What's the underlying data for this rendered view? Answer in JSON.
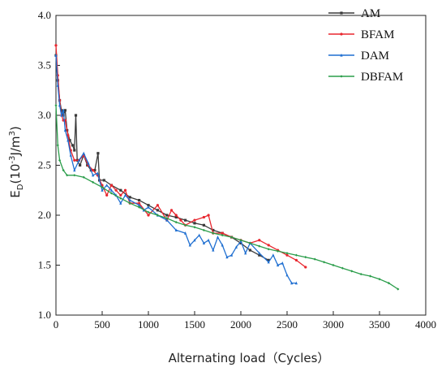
{
  "chart_data": {
    "type": "line",
    "title": "",
    "xlabel": "Alternating load（Cycles）",
    "ylabel": {
      "base": "E",
      "sub": "D",
      "rest1": "(10",
      "sup": "-3",
      "rest2": "J/m",
      "sup2": "3",
      "rest3": ")"
    },
    "xlim": [
      0,
      4000
    ],
    "ylim": [
      1.0,
      4.0
    ],
    "xticks": [
      "0",
      "500",
      "1000",
      "1500",
      "2000",
      "2500",
      "3000",
      "3500",
      "4000"
    ],
    "yticks": [
      "1.0",
      "1.5",
      "2.0",
      "2.5",
      "3.0",
      "3.5",
      "4.0"
    ],
    "grid": false,
    "legend_position": "top-right",
    "series": [
      {
        "name": "AM",
        "color": "#3a3a3a",
        "marker": "square",
        "points": [
          [
            0,
            3.6
          ],
          [
            20,
            3.35
          ],
          [
            40,
            3.15
          ],
          [
            60,
            3.05
          ],
          [
            80,
            3.0
          ],
          [
            100,
            3.05
          ],
          [
            120,
            2.85
          ],
          [
            150,
            2.75
          ],
          [
            180,
            2.7
          ],
          [
            200,
            2.65
          ],
          [
            215,
            3.0
          ],
          [
            230,
            2.55
          ],
          [
            260,
            2.5
          ],
          [
            300,
            2.6
          ],
          [
            340,
            2.5
          ],
          [
            380,
            2.45
          ],
          [
            420,
            2.45
          ],
          [
            455,
            2.62
          ],
          [
            470,
            2.35
          ],
          [
            520,
            2.35
          ],
          [
            600,
            2.3
          ],
          [
            700,
            2.25
          ],
          [
            800,
            2.18
          ],
          [
            900,
            2.15
          ],
          [
            1000,
            2.1
          ],
          [
            1100,
            2.05
          ],
          [
            1200,
            2.0
          ],
          [
            1300,
            1.98
          ],
          [
            1400,
            1.95
          ],
          [
            1500,
            1.92
          ],
          [
            1600,
            1.9
          ],
          [
            1700,
            1.85
          ],
          [
            1800,
            1.82
          ],
          [
            1900,
            1.78
          ],
          [
            2000,
            1.72
          ],
          [
            2100,
            1.65
          ],
          [
            2200,
            1.6
          ],
          [
            2300,
            1.55
          ]
        ]
      },
      {
        "name": "BFAM",
        "color": "#e8262e",
        "marker": "circle",
        "points": [
          [
            0,
            3.7
          ],
          [
            20,
            3.4
          ],
          [
            40,
            3.15
          ],
          [
            60,
            3.0
          ],
          [
            80,
            2.95
          ],
          [
            100,
            2.95
          ],
          [
            130,
            2.8
          ],
          [
            160,
            2.65
          ],
          [
            200,
            2.55
          ],
          [
            250,
            2.55
          ],
          [
            300,
            2.6
          ],
          [
            350,
            2.5
          ],
          [
            400,
            2.45
          ],
          [
            450,
            2.4
          ],
          [
            500,
            2.3
          ],
          [
            550,
            2.2
          ],
          [
            600,
            2.3
          ],
          [
            650,
            2.25
          ],
          [
            700,
            2.2
          ],
          [
            750,
            2.25
          ],
          [
            800,
            2.12
          ],
          [
            900,
            2.12
          ],
          [
            1000,
            2.0
          ],
          [
            1100,
            2.1
          ],
          [
            1200,
            1.95
          ],
          [
            1250,
            2.05
          ],
          [
            1300,
            2.0
          ],
          [
            1350,
            1.95
          ],
          [
            1400,
            1.9
          ],
          [
            1500,
            1.95
          ],
          [
            1600,
            1.98
          ],
          [
            1650,
            2.0
          ],
          [
            1700,
            1.82
          ],
          [
            1800,
            1.82
          ],
          [
            1900,
            1.78
          ],
          [
            2000,
            1.75
          ],
          [
            2100,
            1.72
          ],
          [
            2200,
            1.75
          ],
          [
            2300,
            1.7
          ],
          [
            2400,
            1.65
          ],
          [
            2500,
            1.6
          ],
          [
            2600,
            1.55
          ],
          [
            2700,
            1.48
          ]
        ]
      },
      {
        "name": "DAM",
        "color": "#1f6fd1",
        "marker": "triangle",
        "points": [
          [
            0,
            3.6
          ],
          [
            20,
            3.3
          ],
          [
            40,
            3.1
          ],
          [
            60,
            3.0
          ],
          [
            80,
            3.05
          ],
          [
            100,
            2.85
          ],
          [
            130,
            2.75
          ],
          [
            160,
            2.6
          ],
          [
            200,
            2.45
          ],
          [
            250,
            2.55
          ],
          [
            300,
            2.62
          ],
          [
            350,
            2.52
          ],
          [
            400,
            2.4
          ],
          [
            450,
            2.42
          ],
          [
            500,
            2.25
          ],
          [
            550,
            2.3
          ],
          [
            600,
            2.25
          ],
          [
            650,
            2.2
          ],
          [
            700,
            2.12
          ],
          [
            750,
            2.2
          ],
          [
            800,
            2.15
          ],
          [
            900,
            2.1
          ],
          [
            950,
            2.05
          ],
          [
            1000,
            2.08
          ],
          [
            1100,
            2.0
          ],
          [
            1200,
            1.95
          ],
          [
            1300,
            1.85
          ],
          [
            1400,
            1.82
          ],
          [
            1450,
            1.7
          ],
          [
            1500,
            1.75
          ],
          [
            1550,
            1.8
          ],
          [
            1600,
            1.72
          ],
          [
            1650,
            1.75
          ],
          [
            1700,
            1.65
          ],
          [
            1750,
            1.78
          ],
          [
            1800,
            1.7
          ],
          [
            1850,
            1.58
          ],
          [
            1900,
            1.6
          ],
          [
            1950,
            1.68
          ],
          [
            2000,
            1.74
          ],
          [
            2050,
            1.62
          ],
          [
            2100,
            1.72
          ],
          [
            2200,
            1.62
          ],
          [
            2300,
            1.53
          ],
          [
            2350,
            1.6
          ],
          [
            2400,
            1.5
          ],
          [
            2450,
            1.52
          ],
          [
            2500,
            1.4
          ],
          [
            2550,
            1.32
          ],
          [
            2600,
            1.32
          ]
        ]
      },
      {
        "name": "DBFAM",
        "color": "#2a9d4a",
        "marker": "diamond",
        "points": [
          [
            0,
            3.1
          ],
          [
            20,
            2.7
          ],
          [
            40,
            2.55
          ],
          [
            80,
            2.45
          ],
          [
            120,
            2.4
          ],
          [
            200,
            2.4
          ],
          [
            300,
            2.38
          ],
          [
            400,
            2.33
          ],
          [
            500,
            2.28
          ],
          [
            600,
            2.22
          ],
          [
            700,
            2.17
          ],
          [
            800,
            2.12
          ],
          [
            900,
            2.08
          ],
          [
            1000,
            2.03
          ],
          [
            1100,
            2.0
          ],
          [
            1200,
            1.97
          ],
          [
            1300,
            1.93
          ],
          [
            1400,
            1.9
          ],
          [
            1500,
            1.88
          ],
          [
            1600,
            1.85
          ],
          [
            1700,
            1.82
          ],
          [
            1800,
            1.8
          ],
          [
            1900,
            1.78
          ],
          [
            2000,
            1.75
          ],
          [
            2100,
            1.72
          ],
          [
            2200,
            1.69
          ],
          [
            2300,
            1.66
          ],
          [
            2400,
            1.64
          ],
          [
            2500,
            1.62
          ],
          [
            2600,
            1.6
          ],
          [
            2700,
            1.58
          ],
          [
            2800,
            1.56
          ],
          [
            2900,
            1.53
          ],
          [
            3000,
            1.5
          ],
          [
            3100,
            1.47
          ],
          [
            3200,
            1.44
          ],
          [
            3300,
            1.41
          ],
          [
            3400,
            1.39
          ],
          [
            3500,
            1.36
          ],
          [
            3600,
            1.32
          ],
          [
            3700,
            1.26
          ]
        ]
      }
    ]
  }
}
